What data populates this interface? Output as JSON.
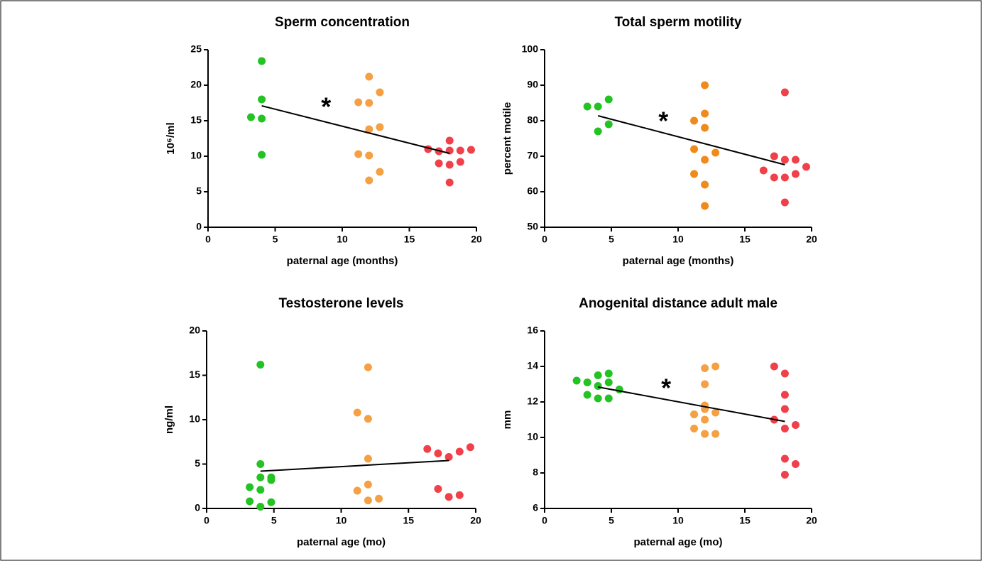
{
  "chart_data": [
    {
      "type": "scatter",
      "title": "Sperm concentration",
      "x_label": "paternal age (months)",
      "y_label": "10⁶/ml",
      "xlim": [
        0,
        20
      ],
      "xticks": [
        0,
        5,
        10,
        15,
        20
      ],
      "ylim": [
        0,
        25
      ],
      "yticks": [
        0,
        5,
        10,
        15,
        20,
        25
      ],
      "series": [
        {
          "color": "#22c322",
          "x": [
            4,
            4,
            3.2,
            4,
            4
          ],
          "values": [
            23.4,
            18,
            15.5,
            15.3,
            10.2
          ]
        },
        {
          "color": "#f5a042",
          "x": [
            11.2,
            12,
            12.8,
            12,
            12,
            12.8,
            11.2,
            12,
            12.8,
            12
          ],
          "values": [
            17.6,
            17.5,
            19,
            21.2,
            13.8,
            14.1,
            10.3,
            10.1,
            7.8,
            6.6
          ]
        },
        {
          "color": "#f0404a",
          "x": [
            16.4,
            17.2,
            18,
            18,
            17.2,
            18,
            18.8,
            18.8,
            19.6,
            18
          ],
          "values": [
            11,
            10.7,
            12.2,
            10.8,
            9,
            8.8,
            9.2,
            10.8,
            10.9,
            6.3
          ]
        }
      ],
      "trend": {
        "color": "#000000",
        "x": [
          4,
          18
        ],
        "values": [
          17.1,
          10.4
        ]
      },
      "annotations": [
        {
          "text": "*",
          "x": 8.8,
          "y": 17.5
        }
      ]
    },
    {
      "type": "scatter",
      "title": "Total sperm motility",
      "x_label": "paternal age (months)",
      "y_label": "percent motile",
      "xlim": [
        0,
        20
      ],
      "xticks": [
        0,
        5,
        10,
        15,
        20
      ],
      "ylim": [
        50,
        100
      ],
      "yticks": [
        50,
        60,
        70,
        80,
        90,
        100
      ],
      "series": [
        {
          "color": "#22c322",
          "x": [
            3.2,
            4,
            4.8,
            4,
            4.8
          ],
          "values": [
            84,
            84,
            86,
            77,
            79
          ]
        },
        {
          "color": "#f08a1a",
          "x": [
            12,
            12,
            12,
            12,
            12,
            12,
            11.2,
            11.2,
            11.2,
            12.8
          ],
          "values": [
            90,
            82,
            78,
            69,
            62,
            56,
            80,
            72,
            65,
            71
          ]
        },
        {
          "color": "#f0404a",
          "x": [
            18,
            18,
            18,
            18,
            16.4,
            17.2,
            17.2,
            18.8,
            18.8,
            19.6
          ],
          "values": [
            88,
            69,
            64,
            57,
            66,
            70,
            64,
            69,
            65,
            67
          ]
        }
      ],
      "trend": {
        "color": "#000000",
        "x": [
          4,
          18
        ],
        "values": [
          81.4,
          67.6
        ]
      },
      "annotations": [
        {
          "text": "*",
          "x": 8.9,
          "y": 81
        }
      ]
    },
    {
      "type": "scatter",
      "title": "Testosterone levels",
      "x_label": "paternal age (mo)",
      "y_label": "ng/ml",
      "xlim": [
        0,
        20
      ],
      "xticks": [
        0,
        5,
        10,
        15,
        20
      ],
      "ylim": [
        0,
        20
      ],
      "yticks": [
        0,
        5,
        10,
        15,
        20
      ],
      "series": [
        {
          "color": "#22c322",
          "x": [
            4,
            4,
            4,
            4,
            4,
            3.2,
            3.2,
            4.8,
            4.8,
            4.8
          ],
          "values": [
            16.2,
            5,
            3.5,
            2.1,
            0.2,
            2.4,
            0.8,
            3.5,
            3.2,
            0.7
          ]
        },
        {
          "color": "#f5a042",
          "x": [
            12,
            12,
            12,
            12,
            12,
            11.2,
            11.2,
            12.8
          ],
          "values": [
            15.9,
            10.1,
            5.6,
            2.7,
            0.9,
            10.8,
            2,
            1.1
          ]
        },
        {
          "color": "#f0404a",
          "x": [
            16.4,
            17.2,
            17.2,
            18,
            18,
            18.8,
            18.8,
            19.6
          ],
          "values": [
            6.7,
            6.2,
            2.2,
            5.8,
            1.3,
            6.4,
            1.5,
            6.9
          ]
        }
      ],
      "trend": {
        "color": "#000000",
        "x": [
          4,
          18
        ],
        "values": [
          4.2,
          5.4
        ]
      }
    },
    {
      "type": "scatter",
      "title": "Anogenital distance adult male",
      "x_label": "paternal age (mo)",
      "y_label": "mm",
      "xlim": [
        0,
        20
      ],
      "xticks": [
        0,
        5,
        10,
        15,
        20
      ],
      "ylim": [
        6,
        16
      ],
      "yticks": [
        6,
        8,
        10,
        12,
        14,
        16
      ],
      "series": [
        {
          "color": "#22c322",
          "x": [
            2.4,
            3.2,
            4,
            4.8,
            4,
            4.8,
            3.2,
            4,
            4.8,
            5.6
          ],
          "values": [
            13.2,
            13.1,
            13.5,
            13.6,
            12.9,
            13.1,
            12.4,
            12.2,
            12.2,
            12.7
          ]
        },
        {
          "color": "#f5a042",
          "x": [
            12,
            12,
            12,
            12,
            12,
            12,
            11.2,
            11.2,
            12.8,
            12.8,
            12.8
          ],
          "values": [
            13.9,
            13,
            11.8,
            11.6,
            11,
            10.2,
            11.3,
            10.5,
            14,
            11.4,
            10.2
          ]
        },
        {
          "color": "#f0404a",
          "x": [
            17.2,
            17.2,
            18,
            18,
            18,
            18,
            18,
            18,
            18.8,
            18.8
          ],
          "values": [
            14,
            11,
            13.6,
            12.4,
            11.6,
            10.5,
            8.8,
            7.9,
            10.7,
            8.5
          ]
        }
      ],
      "trend": {
        "color": "#000000",
        "x": [
          4,
          18
        ],
        "values": [
          12.84,
          10.9
        ]
      },
      "annotations": [
        {
          "text": "*",
          "x": 9.1,
          "y": 13
        }
      ]
    }
  ]
}
